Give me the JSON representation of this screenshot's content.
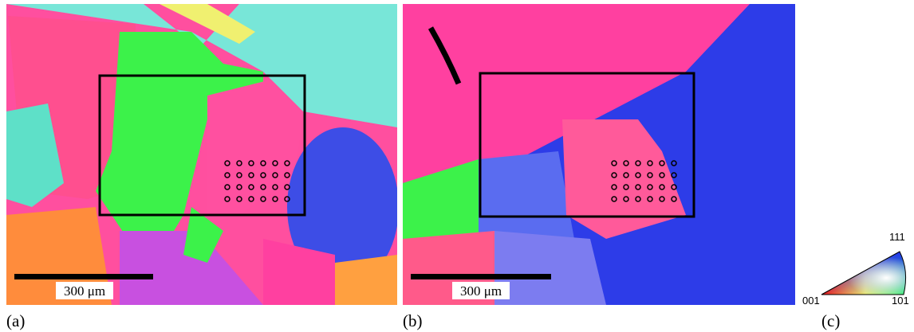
{
  "panels": [
    {
      "label": "(a)",
      "scale_bar": "300 μm"
    },
    {
      "label": "(b)",
      "scale_bar": "300 μm"
    }
  ],
  "legend": {
    "label": "(c)",
    "corner_001": "001",
    "corner_101": "101",
    "corner_111": "111"
  }
}
